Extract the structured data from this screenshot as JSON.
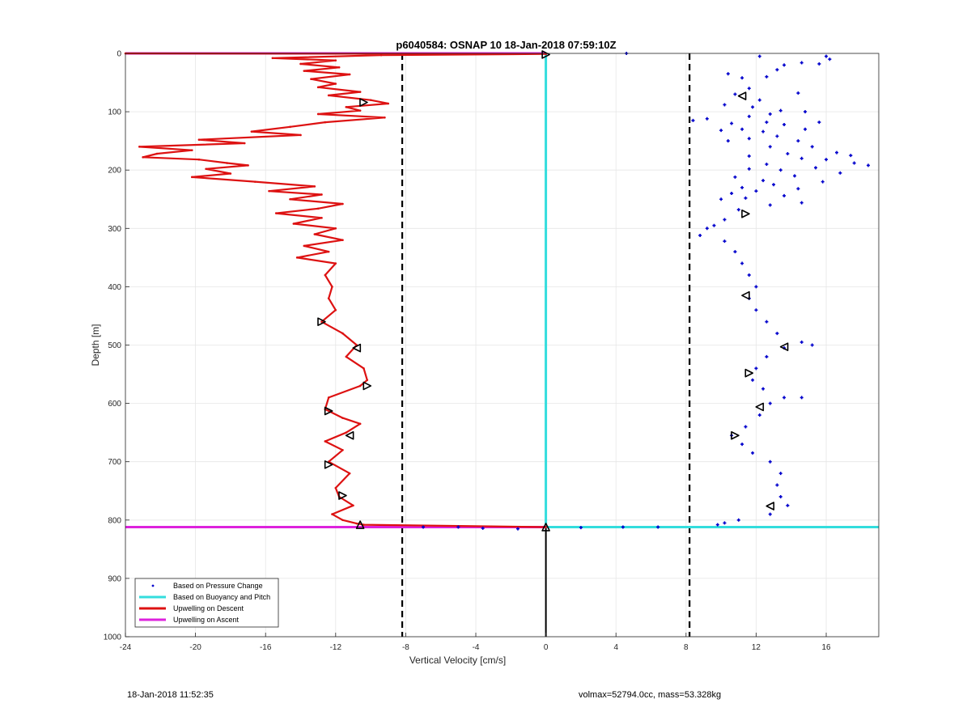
{
  "chart_data": {
    "type": "line",
    "title": "p6040584: OSNAP 10 18-Jan-2018 07:59:10Z",
    "xlabel": "Vertical Velocity [cm/s]",
    "ylabel": "Depth [m]",
    "xlim": [
      -24,
      19
    ],
    "ylim": [
      0,
      1000
    ],
    "y_reversed": true,
    "grid": true,
    "x_ticks": [
      "-24",
      "-20",
      "-16",
      "-12",
      "-8",
      "-4",
      "0",
      "4",
      "8",
      "12",
      "16"
    ],
    "y_ticks": [
      "0",
      "100",
      "200",
      "300",
      "400",
      "500",
      "600",
      "700",
      "800",
      "900",
      "1000"
    ],
    "legend_position": "bottom-left",
    "colors": {
      "pressure": "#0000CC",
      "buoyancy": "#33DDDD",
      "descent": "#DD1111",
      "ascent": "#DD22DD",
      "reference": "#000000"
    },
    "series": [
      {
        "name": "Based on Pressure Change",
        "style": "dots",
        "points": [
          [
            4.6,
            0
          ],
          [
            16.0,
            5
          ],
          [
            16.2,
            10
          ],
          [
            15.6,
            18
          ],
          [
            12.2,
            5
          ],
          [
            13.6,
            20
          ],
          [
            14.6,
            16
          ],
          [
            13.2,
            28
          ],
          [
            10.4,
            35
          ],
          [
            11.2,
            42
          ],
          [
            12.6,
            40
          ],
          [
            11.6,
            60
          ],
          [
            10.8,
            70
          ],
          [
            14.4,
            68
          ],
          [
            12.2,
            80
          ],
          [
            10.2,
            88
          ],
          [
            11.8,
            92
          ],
          [
            13.4,
            98
          ],
          [
            14.8,
            100
          ],
          [
            15.6,
            118
          ],
          [
            12.8,
            104
          ],
          [
            11.6,
            108
          ],
          [
            8.4,
            115
          ],
          [
            9.2,
            112
          ],
          [
            10.6,
            120
          ],
          [
            12.6,
            118
          ],
          [
            13.6,
            122
          ],
          [
            14.8,
            130
          ],
          [
            11.2,
            130
          ],
          [
            10.0,
            132
          ],
          [
            12.4,
            134
          ],
          [
            13.2,
            142
          ],
          [
            14.4,
            150
          ],
          [
            11.6,
            146
          ],
          [
            10.4,
            150
          ],
          [
            15.2,
            160
          ],
          [
            12.8,
            160
          ],
          [
            16.6,
            170
          ],
          [
            17.4,
            175
          ],
          [
            13.8,
            172
          ],
          [
            11.6,
            176
          ],
          [
            14.6,
            180
          ],
          [
            16.0,
            182
          ],
          [
            17.6,
            188
          ],
          [
            18.4,
            192
          ],
          [
            12.6,
            190
          ],
          [
            15.4,
            196
          ],
          [
            11.6,
            198
          ],
          [
            13.4,
            200
          ],
          [
            16.8,
            205
          ],
          [
            14.2,
            210
          ],
          [
            10.8,
            212
          ],
          [
            12.4,
            218
          ],
          [
            15.8,
            220
          ],
          [
            13.0,
            225
          ],
          [
            11.2,
            230
          ],
          [
            14.4,
            232
          ],
          [
            12.0,
            236
          ],
          [
            10.6,
            240
          ],
          [
            13.6,
            244
          ],
          [
            11.4,
            248
          ],
          [
            10.0,
            250
          ],
          [
            14.6,
            256
          ],
          [
            12.8,
            260
          ],
          [
            11.0,
            268
          ],
          [
            10.2,
            285
          ],
          [
            9.6,
            295
          ],
          [
            9.2,
            300
          ],
          [
            8.8,
            312
          ],
          [
            10.2,
            322
          ],
          [
            10.8,
            340
          ],
          [
            11.2,
            360
          ],
          [
            11.6,
            380
          ],
          [
            12.0,
            400
          ],
          [
            11.6,
            420
          ],
          [
            12.0,
            440
          ],
          [
            12.6,
            460
          ],
          [
            13.2,
            480
          ],
          [
            14.6,
            495
          ],
          [
            15.2,
            500
          ],
          [
            13.6,
            505
          ],
          [
            12.6,
            520
          ],
          [
            12.0,
            540
          ],
          [
            11.8,
            560
          ],
          [
            12.4,
            575
          ],
          [
            13.6,
            590
          ],
          [
            14.6,
            590
          ],
          [
            12.8,
            600
          ],
          [
            12.2,
            620
          ],
          [
            11.4,
            640
          ],
          [
            10.6,
            655
          ],
          [
            11.2,
            670
          ],
          [
            11.8,
            685
          ],
          [
            12.8,
            700
          ],
          [
            13.4,
            720
          ],
          [
            13.2,
            740
          ],
          [
            13.4,
            760
          ],
          [
            13.8,
            775
          ],
          [
            12.8,
            790
          ],
          [
            11.0,
            800
          ],
          [
            10.2,
            805
          ],
          [
            9.8,
            808
          ],
          [
            -7.0,
            812
          ],
          [
            -5.0,
            812
          ],
          [
            -3.6,
            814
          ],
          [
            -1.6,
            815
          ],
          [
            2.0,
            813
          ],
          [
            4.4,
            812
          ],
          [
            6.4,
            812
          ]
        ]
      },
      {
        "name": "Based on Buoyancy and Pitch",
        "style": "line",
        "points": [
          [
            0.0,
            0
          ],
          [
            0.0,
            812
          ],
          [
            19.0,
            812
          ]
        ]
      },
      {
        "name": "Upwelling on Descent",
        "style": "line",
        "points": [
          [
            -24,
            0
          ],
          [
            0.0,
            1
          ],
          [
            -9.4,
            3
          ],
          [
            -15.6,
            8
          ],
          [
            -12.0,
            12
          ],
          [
            -14.0,
            18
          ],
          [
            -11.8,
            24
          ],
          [
            -13.8,
            30
          ],
          [
            -11.2,
            36
          ],
          [
            -13.4,
            44
          ],
          [
            -12.0,
            52
          ],
          [
            -13.0,
            58
          ],
          [
            -10.6,
            66
          ],
          [
            -12.4,
            72
          ],
          [
            -10.0,
            80
          ],
          [
            -9.0,
            86
          ],
          [
            -11.4,
            92
          ],
          [
            -10.6,
            98
          ],
          [
            -13.0,
            104
          ],
          [
            -9.2,
            110
          ],
          [
            -12.6,
            118
          ],
          [
            -14.6,
            126
          ],
          [
            -16.8,
            134
          ],
          [
            -14.0,
            140
          ],
          [
            -19.8,
            148
          ],
          [
            -17.2,
            154
          ],
          [
            -23.2,
            160
          ],
          [
            -20.2,
            166
          ],
          [
            -22.2,
            172
          ],
          [
            -23.0,
            178
          ],
          [
            -19.8,
            182
          ],
          [
            -18.2,
            188
          ],
          [
            -17.0,
            192
          ],
          [
            -19.4,
            198
          ],
          [
            -18.0,
            206
          ],
          [
            -20.2,
            212
          ],
          [
            -16.6,
            220
          ],
          [
            -13.2,
            228
          ],
          [
            -15.8,
            236
          ],
          [
            -12.8,
            242
          ],
          [
            -14.6,
            250
          ],
          [
            -11.6,
            258
          ],
          [
            -13.0,
            266
          ],
          [
            -15.4,
            274
          ],
          [
            -12.8,
            282
          ],
          [
            -14.4,
            292
          ],
          [
            -12.0,
            300
          ],
          [
            -13.2,
            310
          ],
          [
            -11.6,
            320
          ],
          [
            -13.8,
            330
          ],
          [
            -12.4,
            340
          ],
          [
            -14.2,
            350
          ],
          [
            -12.0,
            360
          ],
          [
            -12.6,
            380
          ],
          [
            -12.2,
            400
          ],
          [
            -12.4,
            420
          ],
          [
            -12.0,
            440
          ],
          [
            -12.8,
            460
          ],
          [
            -11.6,
            480
          ],
          [
            -10.8,
            500
          ],
          [
            -11.4,
            520
          ],
          [
            -10.4,
            540
          ],
          [
            -10.2,
            560
          ],
          [
            -10.6,
            570
          ],
          [
            -12.4,
            590
          ],
          [
            -12.6,
            610
          ],
          [
            -11.6,
            625
          ],
          [
            -10.6,
            635
          ],
          [
            -11.4,
            650
          ],
          [
            -12.6,
            665
          ],
          [
            -11.6,
            680
          ],
          [
            -12.4,
            700
          ],
          [
            -11.2,
            720
          ],
          [
            -12.0,
            745
          ],
          [
            -11.8,
            760
          ],
          [
            -11.0,
            775
          ],
          [
            -12.2,
            790
          ],
          [
            -11.6,
            800
          ],
          [
            -10.8,
            806
          ],
          [
            -10.4,
            808
          ],
          [
            0.0,
            812
          ]
        ]
      },
      {
        "name": "Upwelling on Ascent",
        "style": "line",
        "points": [
          [
            -24,
            0
          ],
          [
            0.0,
            0
          ],
          [
            -24,
            812
          ],
          [
            -10.6,
            812
          ],
          [
            0.0,
            812
          ]
        ]
      }
    ],
    "reference_lines": {
      "dashed_x": [
        -8.2,
        8.2
      ],
      "solid_segment": [
        [
          0,
          812
        ],
        [
          0,
          1000
        ]
      ],
      "triangle_markers": [
        [
          0.0,
          2,
          "right"
        ],
        [
          0.0,
          812,
          "up"
        ],
        [
          -10.6,
          808,
          "up"
        ],
        [
          -10.4,
          84,
          "right"
        ],
        [
          -12.8,
          460,
          "right"
        ],
        [
          -10.8,
          505,
          "left"
        ],
        [
          -10.2,
          570,
          "right"
        ],
        [
          -12.4,
          613,
          "right"
        ],
        [
          -11.2,
          655,
          "left"
        ],
        [
          -12.4,
          705,
          "right"
        ],
        [
          -11.6,
          758,
          "right"
        ],
        [
          11.2,
          73,
          "left"
        ],
        [
          11.4,
          275,
          "right"
        ],
        [
          11.4,
          415,
          "left"
        ],
        [
          13.6,
          503,
          "left"
        ],
        [
          11.6,
          548,
          "right"
        ],
        [
          12.2,
          606,
          "left"
        ],
        [
          10.8,
          655,
          "right"
        ],
        [
          12.8,
          776,
          "left"
        ]
      ]
    }
  },
  "footer": {
    "timestamp": "18-Jan-2018 11:52:35",
    "info": "volmax=52794.0cc, mass=53.328kg"
  }
}
